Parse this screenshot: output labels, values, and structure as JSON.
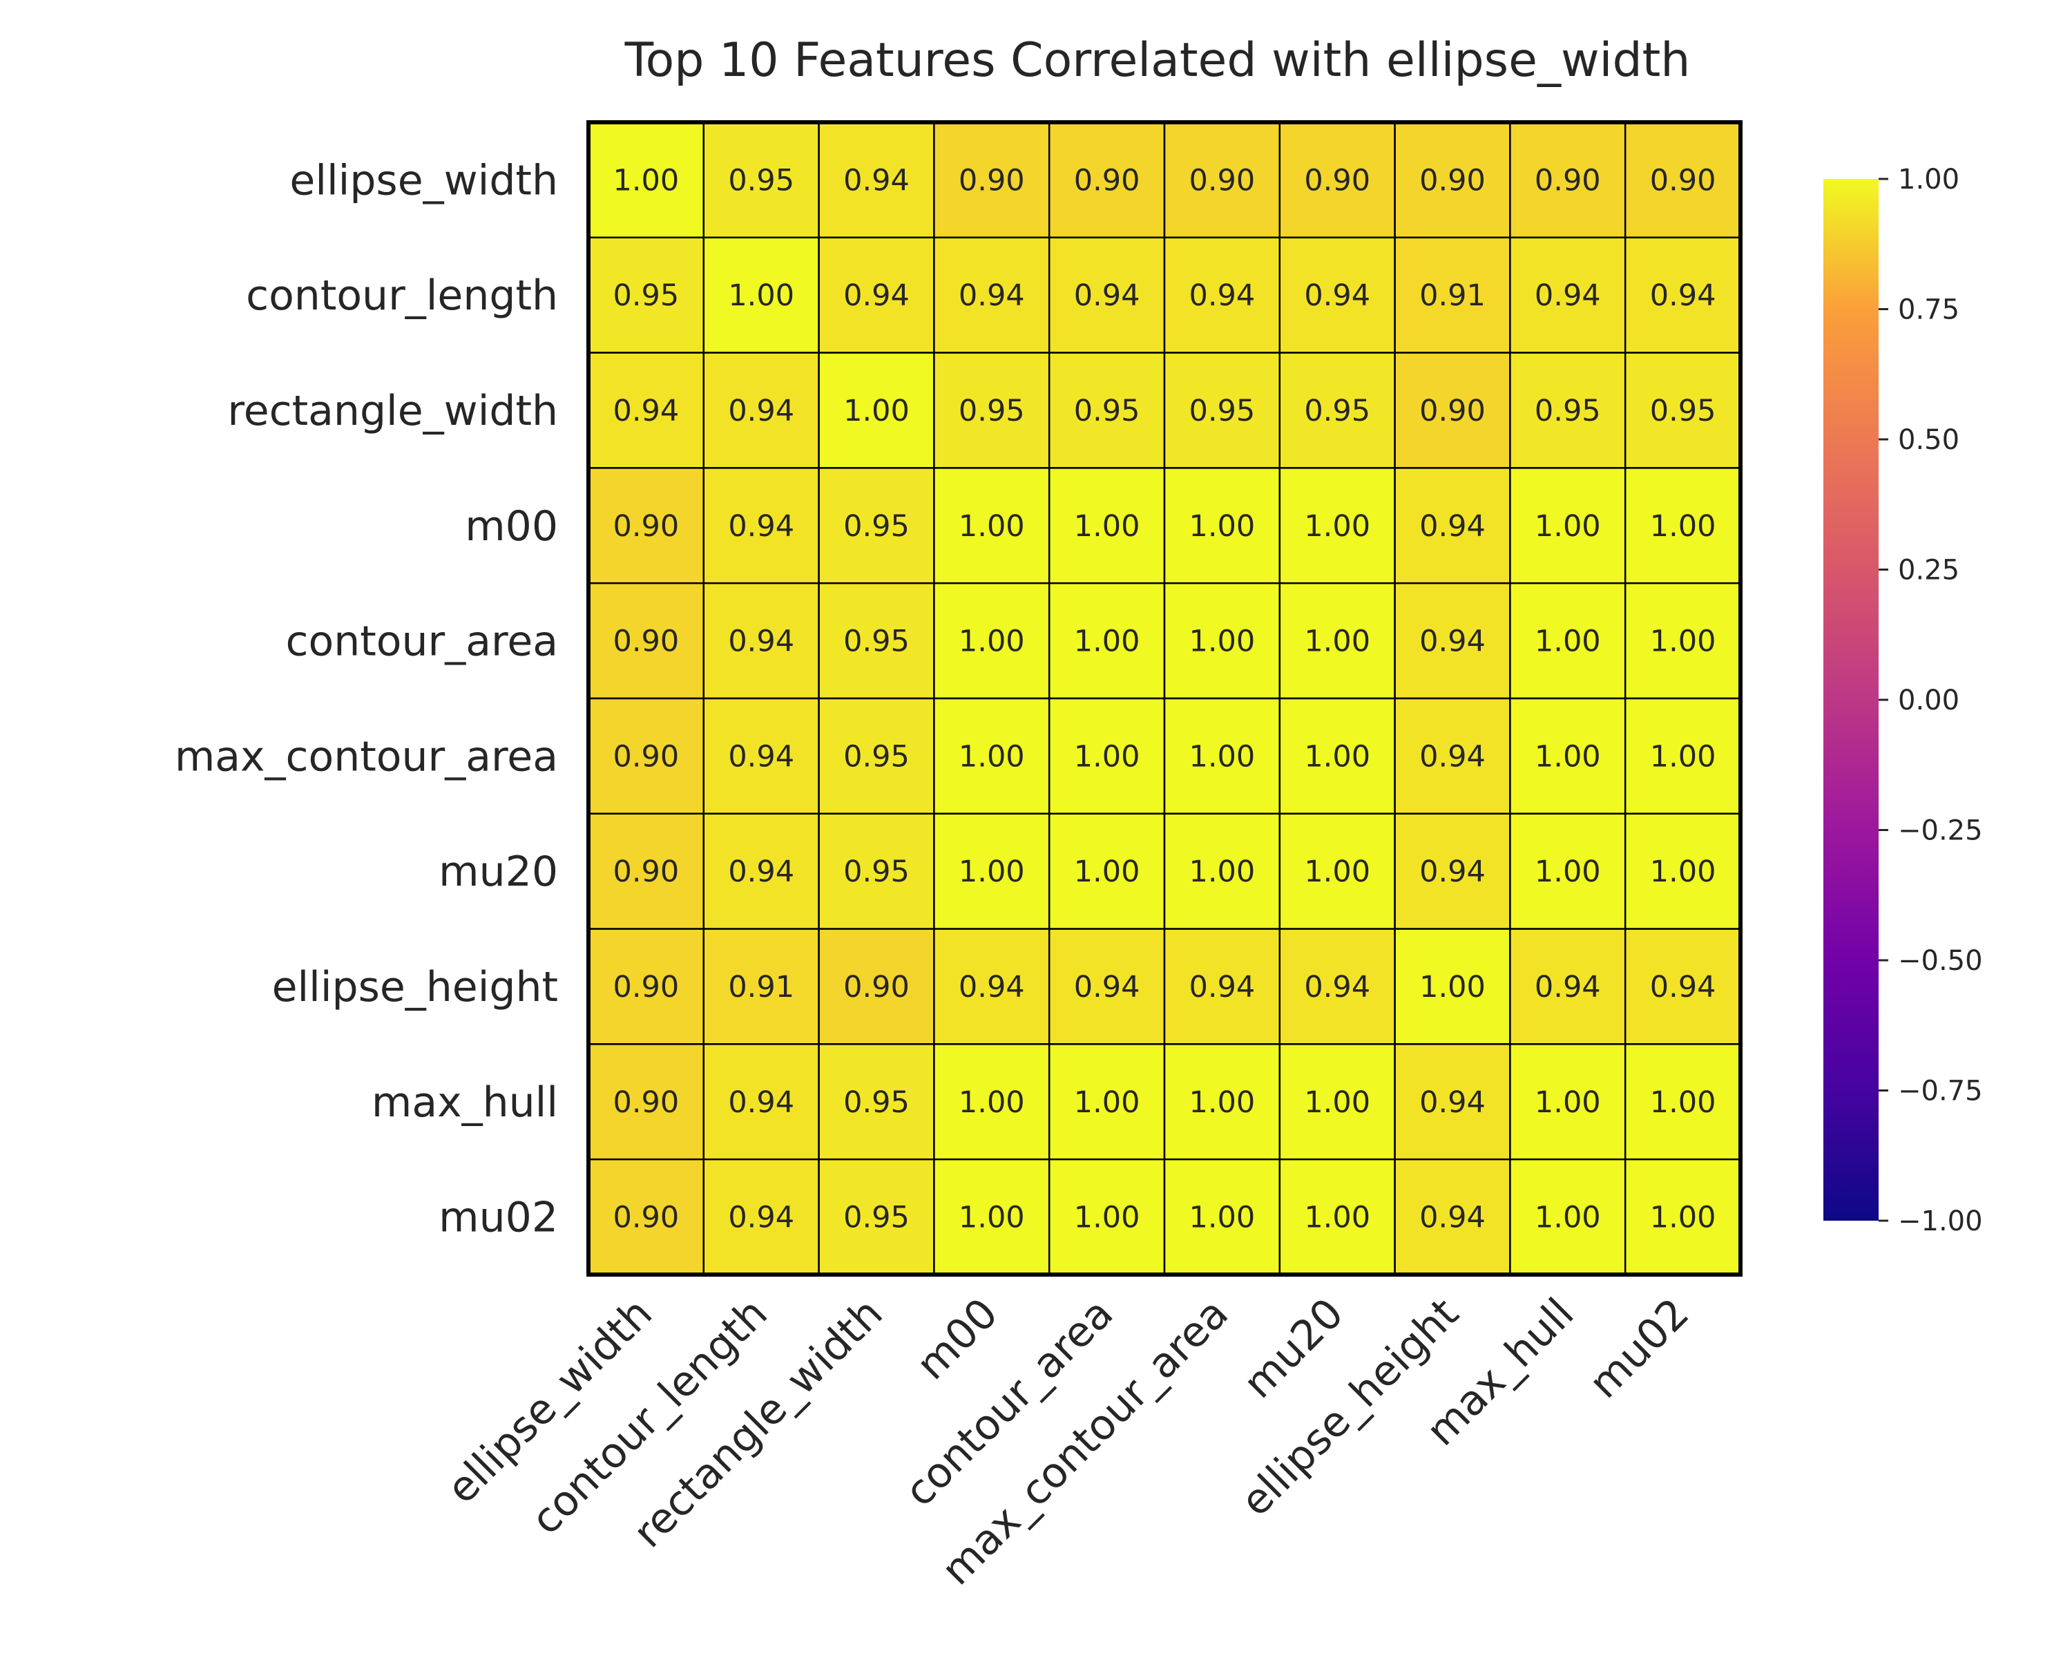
{
  "chart_data": {
    "type": "heatmap",
    "title": "Top 10 Features Correlated with ellipse_width",
    "xlabel": "",
    "ylabel": "",
    "row_labels": [
      "ellipse_width",
      "contour_length",
      "rectangle_width",
      "m00",
      "contour_area",
      "max_contour_area",
      "mu20",
      "ellipse_height",
      "max_hull",
      "mu02"
    ],
    "col_labels": [
      "ellipse_width",
      "contour_length",
      "rectangle_width",
      "m00",
      "contour_area",
      "max_contour_area",
      "mu20",
      "ellipse_height",
      "max_hull",
      "mu02"
    ],
    "values": [
      [
        1.0,
        0.95,
        0.94,
        0.9,
        0.9,
        0.9,
        0.9,
        0.9,
        0.9,
        0.9
      ],
      [
        0.95,
        1.0,
        0.94,
        0.94,
        0.94,
        0.94,
        0.94,
        0.91,
        0.94,
        0.94
      ],
      [
        0.94,
        0.94,
        1.0,
        0.95,
        0.95,
        0.95,
        0.95,
        0.9,
        0.95,
        0.95
      ],
      [
        0.9,
        0.94,
        0.95,
        1.0,
        1.0,
        1.0,
        1.0,
        0.94,
        1.0,
        1.0
      ],
      [
        0.9,
        0.94,
        0.95,
        1.0,
        1.0,
        1.0,
        1.0,
        0.94,
        1.0,
        1.0
      ],
      [
        0.9,
        0.94,
        0.95,
        1.0,
        1.0,
        1.0,
        1.0,
        0.94,
        1.0,
        1.0
      ],
      [
        0.9,
        0.94,
        0.95,
        1.0,
        1.0,
        1.0,
        1.0,
        0.94,
        1.0,
        1.0
      ],
      [
        0.9,
        0.91,
        0.9,
        0.94,
        0.94,
        0.94,
        0.94,
        1.0,
        0.94,
        0.94
      ],
      [
        0.9,
        0.94,
        0.95,
        1.0,
        1.0,
        1.0,
        1.0,
        0.94,
        1.0,
        1.0
      ],
      [
        0.9,
        0.94,
        0.95,
        1.0,
        1.0,
        1.0,
        1.0,
        0.94,
        1.0,
        1.0
      ]
    ],
    "value_format": "0.00",
    "colormap": "plasma",
    "vmin": -1.0,
    "vmax": 1.0,
    "colorbar_ticks": [
      1.0,
      0.75,
      0.5,
      0.25,
      0.0,
      -0.25,
      -0.5,
      -0.75,
      -1.0
    ],
    "colorbar_tick_labels": [
      "1.00",
      "0.75",
      "0.50",
      "0.25",
      "0.00",
      "−0.25",
      "−0.50",
      "−0.75",
      "−1.00"
    ],
    "cell_border_color": "#000000",
    "annotation_color": "#262626",
    "grid": false,
    "legend": "colorbar-right"
  }
}
